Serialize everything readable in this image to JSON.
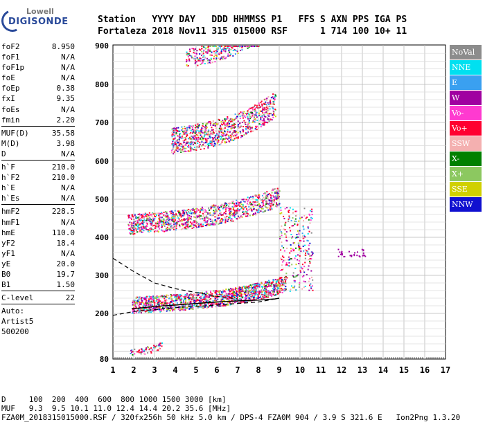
{
  "logo": {
    "line1": "Lowell",
    "line2": "DIGISONDE"
  },
  "header": {
    "line1": [
      "Station",
      "YYYY",
      "DAY",
      "DDD",
      "HHMMSS",
      "P1",
      "FFS",
      "S",
      "AXN",
      "PPS",
      "IGA",
      "PS"
    ],
    "line2": [
      "Fortaleza",
      "2018",
      "Nov11",
      "315",
      "015000",
      "RSF",
      "1",
      "714",
      "100",
      "10+",
      "11"
    ]
  },
  "params": {
    "group1": [
      {
        "k": "foF2",
        "v": "8.950"
      },
      {
        "k": "foF1",
        "v": "N/A"
      },
      {
        "k": "foF1p",
        "v": "N/A"
      },
      {
        "k": "foE",
        "v": "N/A"
      },
      {
        "k": "foEp",
        "v": "0.38"
      },
      {
        "k": "fxI",
        "v": "9.35"
      },
      {
        "k": "foEs",
        "v": "N/A"
      },
      {
        "k": "fmin",
        "v": "2.20"
      }
    ],
    "group2": [
      {
        "k": "MUF(D)",
        "v": "35.58"
      },
      {
        "k": "M(D)",
        "v": "3.98"
      },
      {
        "k": "D",
        "v": "N/A"
      }
    ],
    "group3": [
      {
        "k": "h`F",
        "v": "210.0"
      },
      {
        "k": "h`F2",
        "v": "210.0"
      },
      {
        "k": "h`E",
        "v": "N/A"
      },
      {
        "k": "h`Es",
        "v": "N/A"
      }
    ],
    "group4": [
      {
        "k": "hmF2",
        "v": "228.5"
      },
      {
        "k": "hmF1",
        "v": "N/A"
      },
      {
        "k": "hmE",
        "v": "110.0"
      },
      {
        "k": "yF2",
        "v": "18.4"
      },
      {
        "k": "yF1",
        "v": "N/A"
      },
      {
        "k": "yE",
        "v": "20.0"
      },
      {
        "k": "B0",
        "v": "19.7"
      },
      {
        "k": "B1",
        "v": "1.50"
      }
    ],
    "group5": [
      {
        "k": "C-level",
        "v": "22"
      }
    ],
    "notes": [
      "Auto:",
      "Artist5",
      "500200"
    ]
  },
  "legend": [
    {
      "label": "NoVal",
      "color": "#8c8c8c"
    },
    {
      "label": "NNE",
      "color": "#00e0f0"
    },
    {
      "label": "E",
      "color": "#3aa0f0"
    },
    {
      "label": "W",
      "color": "#a000a0"
    },
    {
      "label": "Vo-",
      "color": "#ff3ad0"
    },
    {
      "label": "Vo+",
      "color": "#ff0030"
    },
    {
      "label": "SSW",
      "color": "#f4b0b0"
    },
    {
      "label": "X-",
      "color": "#008000"
    },
    {
      "label": "X+",
      "color": "#8cc860"
    },
    {
      "label": "SSE",
      "color": "#d0d000"
    },
    {
      "label": "NNW",
      "color": "#1010d0"
    }
  ],
  "footer": {
    "d_row": "D     100  200  400  600  800 1000 1500 3000 [km]",
    "muf_row": "MUF   9.3  9.5 10.1 11.0 12.4 14.4 20.2 35.6 [MHz]",
    "file_row": "FZA0M_2018315015000.RSF / 320fx256h 50 kHz 5.0 km / DPS-4 FZA0M 904 / 3.9 S 321.6 E   Ion2Png 1.3.20"
  },
  "chart_data": {
    "type": "scatter",
    "title": "",
    "xlabel": "",
    "ylabel": "",
    "xlim": [
      1,
      17
    ],
    "ylim": [
      80,
      900
    ],
    "x_ticks": [
      "1",
      "2",
      "3",
      "4",
      "5",
      "6",
      "7",
      "8",
      "9",
      "10",
      "11",
      "12",
      "13",
      "14",
      "15",
      "16",
      "17"
    ],
    "y_ticks": [
      "80",
      "200",
      "300",
      "400",
      "500",
      "600",
      "700",
      "800",
      "900"
    ],
    "grid": true,
    "legend_position": "right",
    "echo_traces": [
      {
        "name": "F trace (1st hop)",
        "x_start": 1.9,
        "x_end": 9.3,
        "h_start": 215,
        "h_end": 235,
        "band": 18
      },
      {
        "name": "F trace (2nd hop)",
        "x_start": 1.7,
        "x_end": 9.0,
        "h_start": 425,
        "h_end": 455,
        "band": 22
      },
      {
        "name": "F trace (3rd hop)",
        "x_start": 3.8,
        "x_end": 8.8,
        "h_start": 640,
        "h_end": 680,
        "band": 28
      },
      {
        "name": "F trace (4th hop)",
        "x_start": 4.5,
        "x_end": 8.0,
        "h_start": 860,
        "h_end": 890,
        "band": 20
      },
      {
        "name": "Es/E region",
        "x_start": 1.8,
        "x_end": 3.4,
        "h_start": 98,
        "h_end": 100,
        "band": 8
      }
    ],
    "profile_curves": [
      {
        "name": "upper",
        "points": [
          [
            1.0,
            345
          ],
          [
            2.0,
            310
          ],
          [
            3.0,
            280
          ],
          [
            4.0,
            265
          ],
          [
            5.0,
            255
          ],
          [
            6.0,
            245
          ],
          [
            7.0,
            238
          ]
        ],
        "dashed": true
      },
      {
        "name": "lower",
        "points": [
          [
            1.0,
            195
          ],
          [
            2.0,
            205
          ],
          [
            4.0,
            215
          ],
          [
            6.0,
            222
          ],
          [
            8.0,
            230
          ],
          [
            9.0,
            240
          ]
        ],
        "dashed": true
      }
    ],
    "profile_solid": {
      "points": [
        [
          1.9,
          212
        ],
        [
          3,
          218
        ],
        [
          4,
          222
        ],
        [
          5,
          226
        ],
        [
          6,
          230
        ],
        [
          7,
          233
        ],
        [
          8,
          235
        ],
        [
          8.8,
          238
        ],
        [
          9.0,
          240
        ]
      ]
    }
  }
}
